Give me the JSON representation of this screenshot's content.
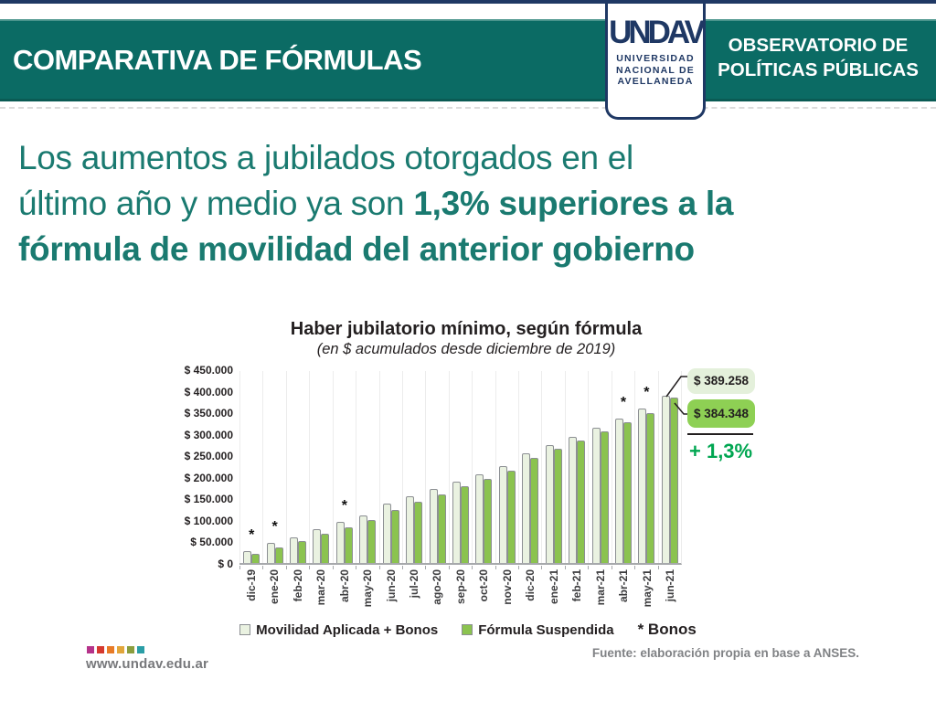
{
  "header": {
    "title": "COMPARATIVA DE FÓRMULAS",
    "observatory_line1": "OBSERVATORIO DE",
    "observatory_line2": "POLÍTICAS PÚBLICAS",
    "logo": {
      "wordmark": "UNDAV",
      "line1": "UNIVERSIDAD",
      "line2": "NACIONAL DE",
      "line3": "AVELLANEDA"
    },
    "colors": {
      "band_teal": "#0B6B64",
      "navy": "#1F3864"
    }
  },
  "headline": {
    "line1": "Los aumentos a jubilados otorgados en el",
    "line2_normal": "último año y medio ya son ",
    "line2_bold": "1,3% superiores a la",
    "line3_bold": "fórmula de movilidad del anterior gobierno",
    "color": "#1A7A70"
  },
  "chart_data": {
    "type": "bar",
    "title": "Haber jubilatorio mínimo, según fórmula",
    "subtitle": "(en $ acumulados desde diciembre de 2019)",
    "categories": [
      "dic-19",
      "ene-20",
      "feb-20",
      "mar-20",
      "abr-20",
      "may-20",
      "jun-20",
      "jul-20",
      "ago-20",
      "sep-20",
      "oct-20",
      "nov-20",
      "dic-20",
      "ene-21",
      "feb-21",
      "mar-21",
      "abr-21",
      "may-21",
      "jun-21"
    ],
    "series": [
      {
        "name": "Movilidad Aplicada + Bonos",
        "color": "#EAF2E1",
        "values": [
          28000,
          46000,
          60000,
          78000,
          96000,
          111000,
          138000,
          154000,
          172000,
          189000,
          207000,
          225000,
          254000,
          273000,
          293000,
          314000,
          335000,
          358000,
          389258
        ]
      },
      {
        "name": "Fórmula Suspendida",
        "color": "#8BC34F",
        "values": [
          22000,
          36000,
          52000,
          68000,
          83000,
          99000,
          124000,
          143000,
          159000,
          178000,
          196000,
          215000,
          245000,
          265000,
          285000,
          306000,
          327000,
          349000,
          384348
        ]
      }
    ],
    "ylim": [
      0,
      450000
    ],
    "ytick_step": 50000,
    "ytick_labels": [
      "$ 450.000",
      "$ 400.000",
      "$ 350.000",
      "$ 300.000",
      "$ 250.000",
      "$ 200.000",
      "$ 150.000",
      "$ 100.000",
      "$ 50.000",
      "$ 0"
    ],
    "bonus_categories": [
      "dic-19",
      "ene-20",
      "abr-20",
      "abr-21",
      "may-21"
    ],
    "bonus_symbol": "*",
    "grid": "vertical-category-lines",
    "legend_position": "bottom",
    "legend_note": "* Bonos",
    "annotations": {
      "callout_top": "$ 389.258",
      "callout_bottom": "$ 384.348",
      "difference": "+ 1,3%",
      "difference_color": "#00A651"
    }
  },
  "footer": {
    "website": "www.undav.edu.ar",
    "source": "Fuente: elaboración propia en base a ANSES.",
    "dot_colors": [
      "#B5338A",
      "#D6392F",
      "#E87B27",
      "#E2A63B",
      "#8B9E3E",
      "#2B9EA6"
    ]
  }
}
